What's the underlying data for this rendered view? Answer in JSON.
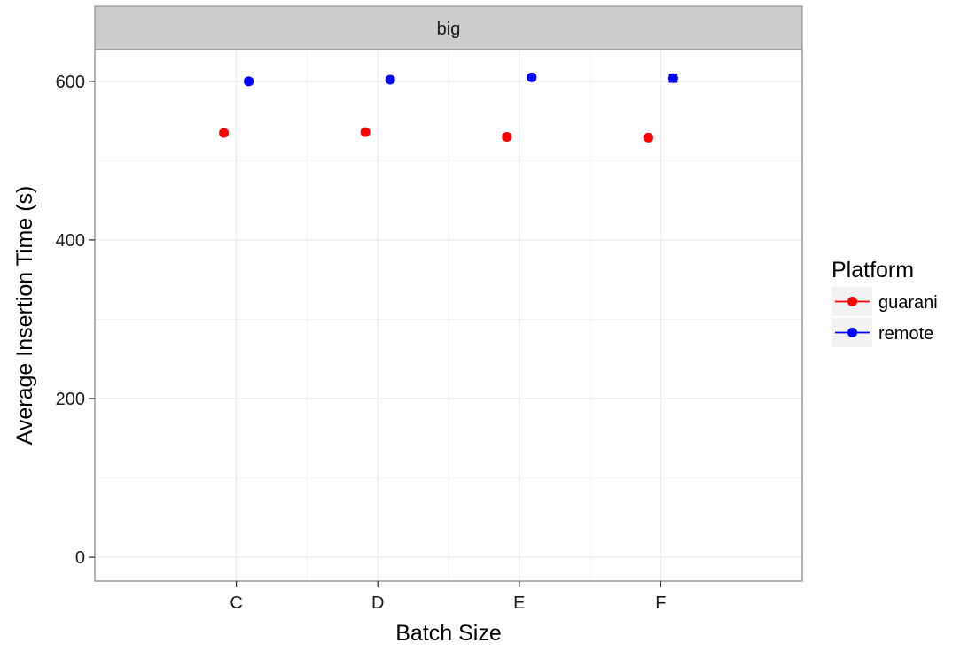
{
  "chart_data": {
    "type": "scatter",
    "facet_label": "big",
    "xlabel": "Batch Size",
    "ylabel": "Average Insertion Time (s)",
    "categories": [
      "C",
      "D",
      "E",
      "F"
    ],
    "yticks": [
      0,
      200,
      400,
      600
    ],
    "ylim": [
      -30,
      640
    ],
    "grid": true,
    "legend": {
      "title": "Platform",
      "position": "right"
    },
    "series": [
      {
        "name": "guarani",
        "color": "#ff0000",
        "values": [
          535,
          536,
          530,
          529
        ],
        "errors": [
          3,
          3,
          3,
          3
        ]
      },
      {
        "name": "remote",
        "color": "#0000ff",
        "values": [
          600,
          602,
          605,
          604
        ],
        "errors": [
          3,
          3,
          3,
          5
        ]
      }
    ]
  }
}
